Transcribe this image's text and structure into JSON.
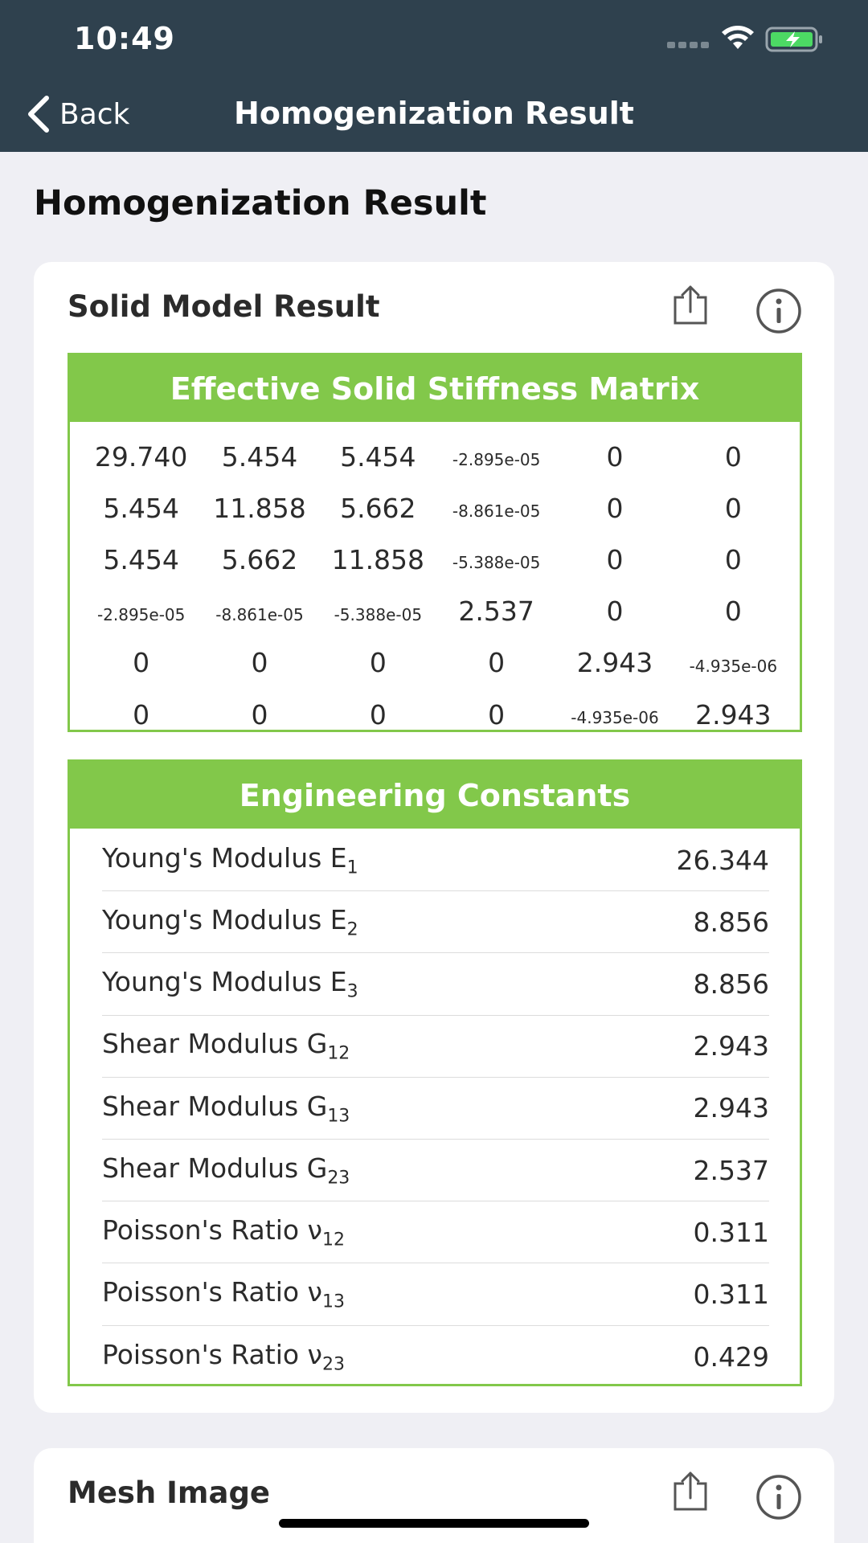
{
  "status": {
    "time": "10:49"
  },
  "nav": {
    "back_label": "Back",
    "title": "Homogenization Result"
  },
  "page": {
    "title": "Homogenization Result"
  },
  "result_card": {
    "title": "Solid Model Result",
    "matrix": {
      "header": "Effective Solid Stiffness Matrix",
      "rows": [
        [
          "29.740",
          "5.454",
          "5.454",
          "-2.895e-05",
          "0",
          "0"
        ],
        [
          "5.454",
          "11.858",
          "5.662",
          "-8.861e-05",
          "0",
          "0"
        ],
        [
          "5.454",
          "5.662",
          "11.858",
          "-5.388e-05",
          "0",
          "0"
        ],
        [
          "-2.895e-05",
          "-8.861e-05",
          "-5.388e-05",
          "2.537",
          "0",
          "0"
        ],
        [
          "0",
          "0",
          "0",
          "0",
          "2.943",
          "-4.935e-06"
        ],
        [
          "0",
          "0",
          "0",
          "0",
          "-4.935e-06",
          "2.943"
        ]
      ]
    },
    "constants": {
      "header": "Engineering Constants",
      "items": [
        {
          "label": "Young's Modulus E",
          "sub": "1",
          "value": "26.344"
        },
        {
          "label": "Young's Modulus E",
          "sub": "2",
          "value": "8.856"
        },
        {
          "label": "Young's Modulus E",
          "sub": "3",
          "value": "8.856"
        },
        {
          "label": "Shear Modulus G",
          "sub": "12",
          "value": "2.943"
        },
        {
          "label": "Shear Modulus G",
          "sub": "13",
          "value": "2.943"
        },
        {
          "label": "Shear Modulus G",
          "sub": "23",
          "value": "2.537"
        },
        {
          "label": "Poisson's Ratio ν",
          "sub": "12",
          "value": "0.311"
        },
        {
          "label": "Poisson's Ratio ν",
          "sub": "13",
          "value": "0.311"
        },
        {
          "label": "Poisson's Ratio ν",
          "sub": "23",
          "value": "0.429"
        }
      ]
    }
  },
  "mesh_card": {
    "title": "Mesh Image"
  },
  "colors": {
    "nav": "#2f414e",
    "accent": "#82c84a",
    "background": "#efeff4"
  },
  "icons": [
    "wifi-icon",
    "battery-charging-icon",
    "chevron-left-icon",
    "share-icon",
    "info-icon"
  ]
}
